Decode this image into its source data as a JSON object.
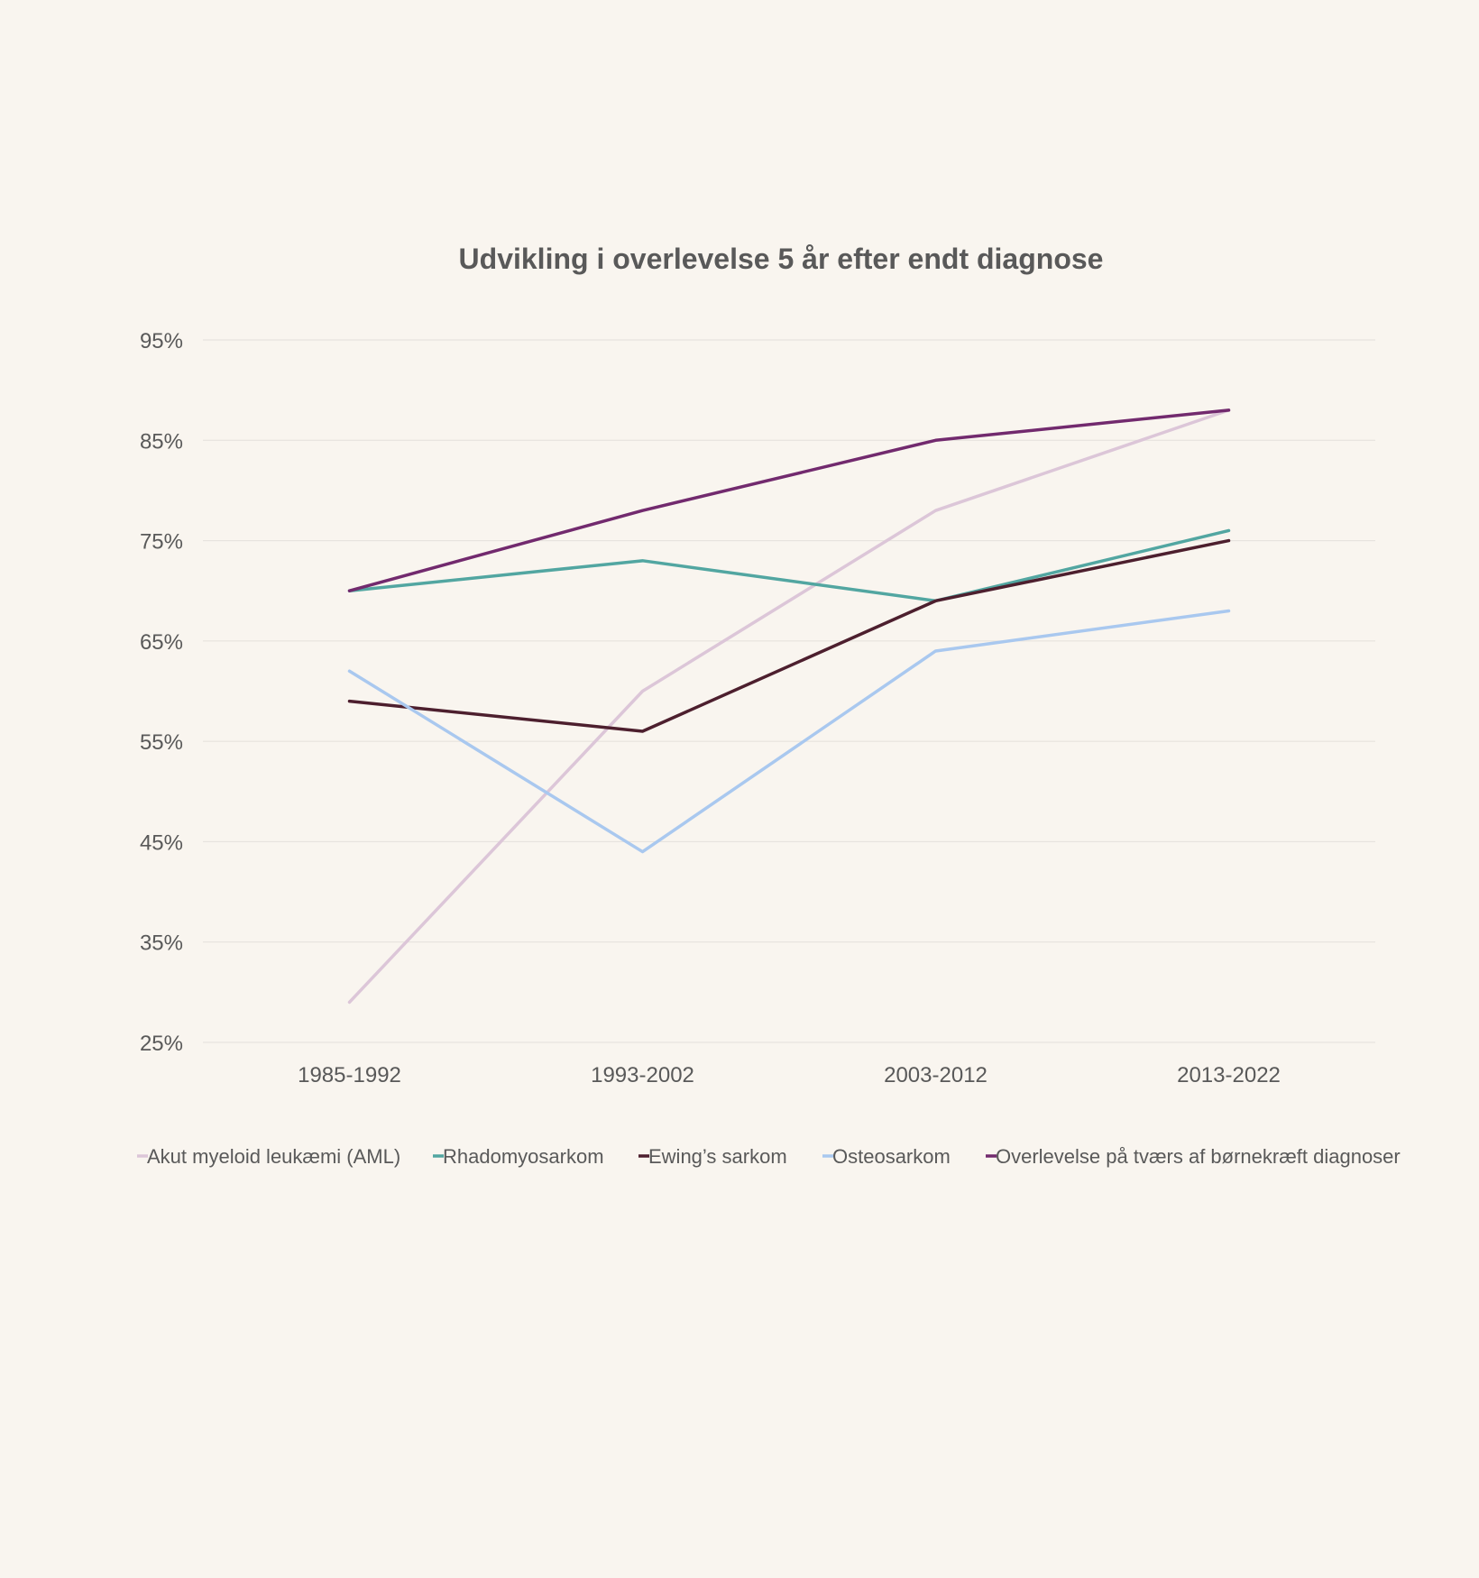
{
  "chart_data": {
    "type": "line",
    "title": "Udvikling i overlevelse 5 år efter endt diagnose",
    "xlabel": "",
    "ylabel": "",
    "categories": [
      "1985-1992",
      "1993-2002",
      "2003-2012",
      "2013-2022"
    ],
    "ylim": [
      25,
      95
    ],
    "yticks": [
      "95%",
      "85%",
      "75%",
      "65%",
      "55%",
      "45%",
      "35%",
      "25%"
    ],
    "ytick_values": [
      95,
      85,
      75,
      65,
      55,
      45,
      35,
      25
    ],
    "grid": true,
    "legend_position": "bottom",
    "series": [
      {
        "name": "Akut myeloid leukæmi (AML)",
        "color": "#dcc6d8",
        "values": [
          29,
          60,
          78,
          88
        ]
      },
      {
        "name": "Rhadomyosarkom",
        "color": "#52a6a1",
        "values": [
          70,
          73,
          69,
          76
        ]
      },
      {
        "name": "Ewing’s sarkom",
        "color": "#4d1f2e",
        "values": [
          59,
          56,
          69,
          75
        ]
      },
      {
        "name": "Osteosarkom",
        "color": "#a9c8ef",
        "values": [
          62,
          44,
          64,
          68
        ]
      },
      {
        "name": "Overlevelse på tværs af børnekræft diagnoser",
        "color": "#722a6e",
        "values": [
          70,
          78,
          85,
          88
        ]
      }
    ]
  }
}
